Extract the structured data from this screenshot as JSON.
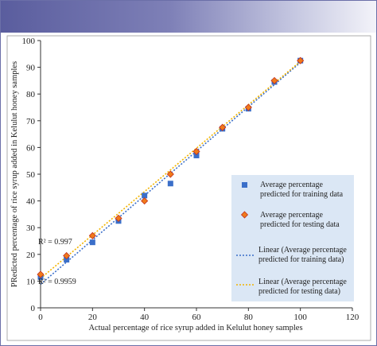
{
  "colors": {
    "training": "#3b6fc9",
    "testing_fill": "#f07a1a",
    "testing_edge": "#c0301f",
    "testing_line": "#f2b400",
    "legend_bg": "#dbe7f5",
    "header_band": "#6366a6"
  },
  "chart_data": {
    "type": "scatter",
    "title": "",
    "xlabel": "Actual percentage of rice syrup added in Kelulut honey samples",
    "ylabel": "PRedicted percentage of rice syrup added in Kelulut honey samples",
    "xlim": [
      0,
      120
    ],
    "ylim": [
      0,
      100
    ],
    "x_ticks": [
      "0",
      "20",
      "40",
      "60",
      "80",
      "100",
      "120"
    ],
    "y_ticks": [
      "0",
      "10",
      "20",
      "30",
      "40",
      "50",
      "60",
      "70",
      "80",
      "90",
      "100"
    ],
    "grid": false,
    "legend_position": "right",
    "series": [
      {
        "name": "Average percentage predicted for training data",
        "marker": "square",
        "x": [
          0,
          10,
          20,
          30,
          40,
          50,
          60,
          70,
          80,
          90,
          100
        ],
        "y": [
          11.5,
          18,
          24.5,
          32.5,
          42,
          46.5,
          57,
          67,
          74.5,
          84.5,
          92.5
        ]
      },
      {
        "name": "Average percentage predicted for testing data",
        "marker": "diamond",
        "x": [
          0,
          10,
          20,
          30,
          40,
          50,
          60,
          70,
          80,
          90,
          100
        ],
        "y": [
          12.5,
          19.5,
          27,
          33.5,
          40,
          50,
          58.5,
          67.5,
          75,
          85,
          92.5
        ]
      }
    ],
    "trendlines": [
      {
        "name": "Linear (Average percentage predicted for training data)",
        "x": [
          0,
          100
        ],
        "y": [
          8.8,
          91.8
        ]
      },
      {
        "name": "Linear (Average percentage predicted for testing data)",
        "x": [
          0,
          100
        ],
        "y": [
          11.0,
          92.2
        ]
      }
    ],
    "annotations": [
      "R² = 0.997",
      "R² = 0.9959"
    ]
  }
}
